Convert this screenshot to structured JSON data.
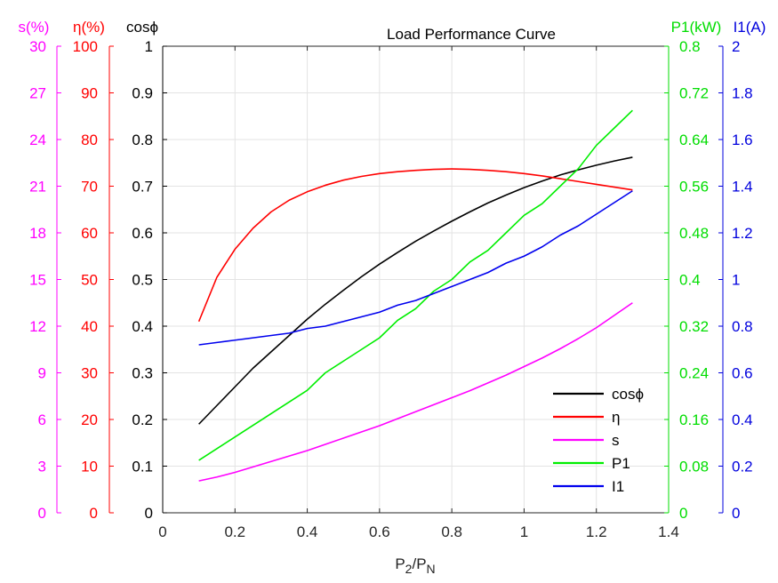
{
  "chart_data": {
    "type": "line",
    "title": "Load Performance Curve",
    "xlabel": {
      "base": "P",
      "sub1": "2",
      "slash": "/P",
      "sub2": "N"
    },
    "xlim": [
      0,
      1.4
    ],
    "xticks": [
      "0",
      "0.2",
      "0.4",
      "0.6",
      "0.8",
      "1",
      "1.2",
      "1.4"
    ],
    "grid": true,
    "legend_position": "bottom-right",
    "axes": [
      {
        "id": "s",
        "title": "s(%)",
        "side": "left",
        "color": "#ff00ff",
        "ylim": [
          0,
          30
        ],
        "ticks": [
          "0",
          "3",
          "6",
          "9",
          "12",
          "15",
          "18",
          "21",
          "24",
          "27",
          "30"
        ]
      },
      {
        "id": "eta",
        "title": "η(%)",
        "side": "left",
        "color": "#ff0000",
        "ylim": [
          0,
          100
        ],
        "ticks": [
          "0",
          "10",
          "20",
          "30",
          "40",
          "50",
          "60",
          "70",
          "80",
          "90",
          "100"
        ]
      },
      {
        "id": "cos",
        "title": "cosϕ",
        "side": "left",
        "color": "#000000",
        "ylim": [
          0,
          1
        ],
        "ticks": [
          "0",
          "0.1",
          "0.2",
          "0.3",
          "0.4",
          "0.5",
          "0.6",
          "0.7",
          "0.8",
          "0.9",
          "1"
        ]
      },
      {
        "id": "p1",
        "title": "P1(kW)",
        "side": "right",
        "color": "#00dd00",
        "ylim": [
          0,
          0.8
        ],
        "ticks": [
          "0",
          "0.08",
          "0.16",
          "0.24",
          "0.32",
          "0.4",
          "0.48",
          "0.56",
          "0.64",
          "0.72",
          "0.8"
        ]
      },
      {
        "id": "i1",
        "title": "I1(A)",
        "side": "right",
        "color": "#0000dd",
        "ylim": [
          0,
          2
        ],
        "ticks": [
          "0",
          "0.2",
          "0.4",
          "0.6",
          "0.8",
          "1",
          "1.2",
          "1.4",
          "1.6",
          "1.8",
          "2"
        ]
      }
    ],
    "x": [
      0.1,
      0.15,
      0.2,
      0.25,
      0.3,
      0.35,
      0.4,
      0.45,
      0.5,
      0.55,
      0.6,
      0.65,
      0.7,
      0.75,
      0.8,
      0.85,
      0.9,
      0.95,
      1.0,
      1.05,
      1.1,
      1.15,
      1.2,
      1.25,
      1.3
    ],
    "series": [
      {
        "name": "cosϕ",
        "axis": "cos",
        "color": "#000000",
        "values": [
          0.19,
          0.23,
          0.27,
          0.31,
          0.345,
          0.38,
          0.415,
          0.447,
          0.477,
          0.506,
          0.533,
          0.558,
          0.582,
          0.604,
          0.625,
          0.645,
          0.664,
          0.681,
          0.697,
          0.711,
          0.724,
          0.735,
          0.745,
          0.754,
          0.762
        ]
      },
      {
        "name": "η",
        "axis": "eta",
        "color": "#ff0000",
        "values": [
          41,
          50.5,
          56.5,
          61,
          64.5,
          67,
          68.8,
          70.2,
          71.3,
          72.1,
          72.7,
          73.1,
          73.4,
          73.6,
          73.7,
          73.6,
          73.4,
          73.1,
          72.7,
          72.2,
          71.6,
          71.0,
          70.4,
          69.8,
          69.2
        ]
      },
      {
        "name": "s",
        "axis": "s",
        "color": "#ff00ff",
        "values": [
          2.05,
          2.3,
          2.6,
          2.95,
          3.3,
          3.65,
          4.0,
          4.4,
          4.8,
          5.2,
          5.6,
          6.05,
          6.5,
          6.95,
          7.4,
          7.85,
          8.35,
          8.85,
          9.4,
          9.95,
          10.55,
          11.2,
          11.9,
          12.7,
          13.5
        ]
      },
      {
        "name": "P1",
        "axis": "p1",
        "color": "#00ee00",
        "values": [
          0.09,
          0.11,
          0.13,
          0.15,
          0.17,
          0.19,
          0.21,
          0.24,
          0.26,
          0.28,
          0.3,
          0.33,
          0.35,
          0.38,
          0.4,
          0.43,
          0.45,
          0.48,
          0.51,
          0.53,
          0.56,
          0.59,
          0.63,
          0.66,
          0.69
        ]
      },
      {
        "name": "I1",
        "axis": "i1",
        "color": "#0000ee",
        "values": [
          0.72,
          0.73,
          0.74,
          0.75,
          0.76,
          0.77,
          0.79,
          0.8,
          0.82,
          0.84,
          0.86,
          0.89,
          0.91,
          0.94,
          0.97,
          1.0,
          1.03,
          1.07,
          1.1,
          1.14,
          1.19,
          1.23,
          1.28,
          1.33,
          1.38
        ]
      }
    ]
  }
}
